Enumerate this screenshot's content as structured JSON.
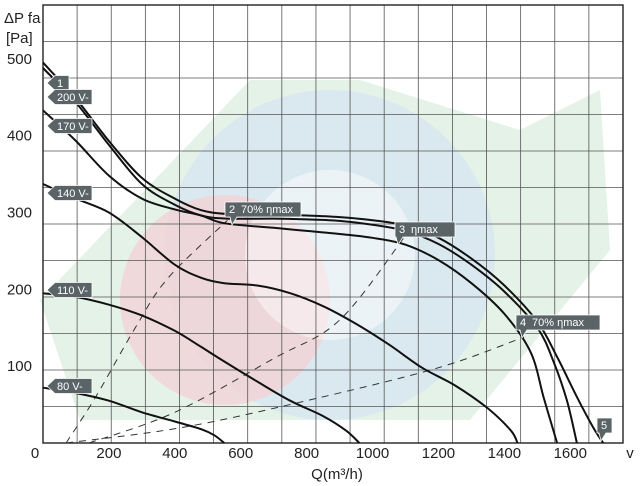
{
  "chart_data": {
    "type": "line",
    "xlabel": "Q(m³/h)",
    "ylabel": "ΔP fa",
    "ylabel_unit": "[Pa]",
    "x_end_label": "v",
    "xlim": [
      0,
      1760
    ],
    "ylim": [
      0,
      570
    ],
    "xticks": [
      0,
      200,
      400,
      600,
      800,
      1000,
      1200,
      1400,
      1600
    ],
    "yticks": [
      100,
      200,
      300,
      400,
      500
    ],
    "grid": true,
    "colors": {
      "curve": "#111111",
      "dashed": "#333333",
      "tag": "#5a6466",
      "grid": "#555555",
      "watermark_green": "#cfe8d6",
      "watermark_blue": "#d5e6f3",
      "watermark_red": "#f3d2d6"
    },
    "series": [
      {
        "name": "1",
        "points": [
          [
            0,
            495
          ],
          [
            100,
            448
          ],
          [
            200,
            393
          ],
          [
            300,
            345
          ],
          [
            400,
            318
          ],
          [
            480,
            303
          ],
          [
            560,
            298
          ],
          [
            700,
            297
          ],
          [
            800,
            296
          ],
          [
            900,
            294
          ],
          [
            1000,
            290
          ],
          [
            1100,
            283
          ],
          [
            1200,
            267
          ],
          [
            1300,
            240
          ],
          [
            1400,
            205
          ],
          [
            1500,
            158
          ],
          [
            1560,
            112
          ],
          [
            1620,
            60
          ],
          [
            1670,
            20
          ],
          [
            1700,
            0
          ]
        ]
      },
      {
        "name": "200 V-",
        "points": [
          [
            0,
            488
          ],
          [
            100,
            443
          ],
          [
            200,
            388
          ],
          [
            300,
            337
          ],
          [
            400,
            310
          ],
          [
            480,
            296
          ],
          [
            560,
            292
          ],
          [
            700,
            292
          ],
          [
            800,
            291
          ],
          [
            900,
            289
          ],
          [
            1000,
            284
          ],
          [
            1100,
            276
          ],
          [
            1200,
            259
          ],
          [
            1300,
            232
          ],
          [
            1400,
            197
          ],
          [
            1500,
            150
          ],
          [
            1550,
            105
          ],
          [
            1590,
            55
          ],
          [
            1620,
            0
          ]
        ]
      },
      {
        "name": "170 V-",
        "points": [
          [
            0,
            433
          ],
          [
            100,
            393
          ],
          [
            200,
            348
          ],
          [
            300,
            318
          ],
          [
            400,
            304
          ],
          [
            480,
            296
          ],
          [
            550,
            286
          ],
          [
            700,
            280
          ],
          [
            800,
            276
          ],
          [
            900,
            272
          ],
          [
            1000,
            267
          ],
          [
            1100,
            258
          ],
          [
            1200,
            238
          ],
          [
            1300,
            208
          ],
          [
            1400,
            168
          ],
          [
            1480,
            118
          ],
          [
            1520,
            58
          ],
          [
            1560,
            0
          ]
        ]
      },
      {
        "name": "140 V-",
        "points": [
          [
            0,
            337
          ],
          [
            100,
            318
          ],
          [
            200,
            300
          ],
          [
            300,
            268
          ],
          [
            400,
            232
          ],
          [
            480,
            215
          ],
          [
            550,
            208
          ],
          [
            650,
            205
          ],
          [
            750,
            195
          ],
          [
            850,
            178
          ],
          [
            950,
            155
          ],
          [
            1050,
            128
          ],
          [
            1150,
            98
          ],
          [
            1250,
            75
          ],
          [
            1350,
            45
          ],
          [
            1420,
            16
          ],
          [
            1440,
            0
          ]
        ]
      },
      {
        "name": "110 V-",
        "points": [
          [
            0,
            195
          ],
          [
            100,
            190
          ],
          [
            200,
            180
          ],
          [
            300,
            166
          ],
          [
            400,
            146
          ],
          [
            480,
            125
          ],
          [
            550,
            106
          ],
          [
            650,
            80
          ],
          [
            750,
            55
          ],
          [
            850,
            35
          ],
          [
            920,
            16
          ],
          [
            960,
            0
          ]
        ]
      },
      {
        "name": "80 V-",
        "points": [
          [
            0,
            72
          ],
          [
            100,
            65
          ],
          [
            200,
            55
          ],
          [
            300,
            40
          ],
          [
            400,
            28
          ],
          [
            480,
            18
          ],
          [
            520,
            10
          ],
          [
            550,
            0
          ]
        ]
      }
    ],
    "efficiency_lines": [
      {
        "label": "2",
        "text": "70% ηmax",
        "points": [
          [
            70,
            0
          ],
          [
            160,
            60
          ],
          [
            280,
            150
          ],
          [
            380,
            215
          ],
          [
            560,
            290
          ]
        ]
      },
      {
        "label": "3",
        "text": "ηmax",
        "points": [
          [
            140,
            0
          ],
          [
            400,
            40
          ],
          [
            700,
            110
          ],
          [
            900,
            160
          ],
          [
            1100,
            270
          ]
        ]
      },
      {
        "label": "4",
        "text": "70% ηmax",
        "points": [
          [
            70,
            0
          ],
          [
            420,
            20
          ],
          [
            800,
            55
          ],
          [
            1200,
            98
          ],
          [
            1460,
            138
          ]
        ]
      }
    ],
    "voltage_tags": [
      "1",
      "200 V-",
      "170 V-",
      "140 V-",
      "110 V-",
      "80 V-"
    ],
    "point_tags": [
      {
        "label": "2",
        "text": "70% ηmax"
      },
      {
        "label": "3",
        "text": "ηmax"
      },
      {
        "label": "4",
        "text": "70% ηmax"
      },
      {
        "label": "5",
        "text": ""
      }
    ]
  }
}
